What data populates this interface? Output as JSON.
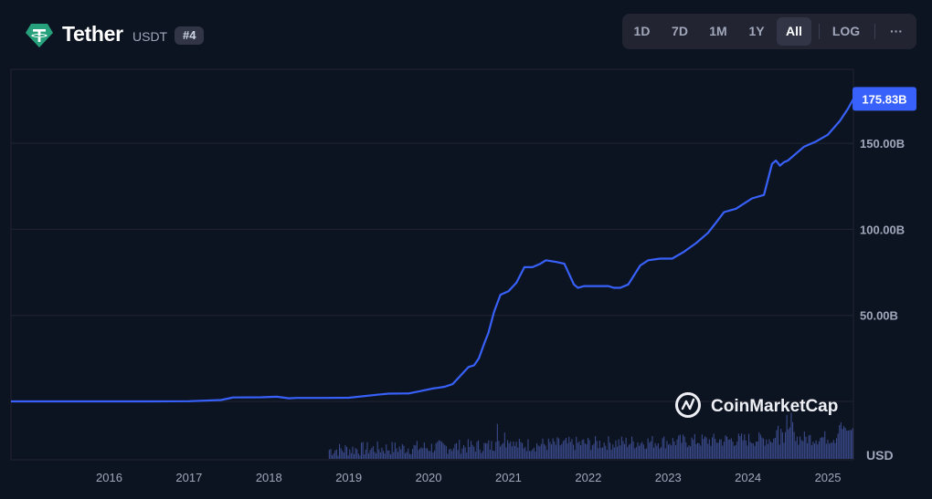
{
  "header": {
    "coin_name": "Tether",
    "coin_symbol": "USDT",
    "rank": "#4",
    "logo_icon": "tether-logo-icon",
    "logo_color": "#26a17b"
  },
  "range_selector": {
    "options": [
      "1D",
      "7D",
      "1M",
      "1Y",
      "All"
    ],
    "selected": "All",
    "log_label": "LOG",
    "more_label": "···"
  },
  "watermark": {
    "text": "CoinMarketCap",
    "icon": "coinmarketcap-logo-icon"
  },
  "volume_label": "USD",
  "colors": {
    "line": "#3861fb",
    "badge": "#3861fb",
    "volume": "#3a4a8a",
    "grid": "#222531",
    "background": "#0d1421"
  },
  "chart_data": {
    "type": "line",
    "title": "",
    "xlabel": "",
    "ylabel": "",
    "x_ticks": [
      "2016",
      "2017",
      "2018",
      "2019",
      "2020",
      "2021",
      "2022",
      "2023",
      "2024",
      "2025"
    ],
    "y_ticks": [
      "50.00B",
      "100.00B",
      "150.00B"
    ],
    "y_tick_values": [
      50,
      100,
      150
    ],
    "ylim": [
      0,
      193
    ],
    "xlim": [
      2015.27,
      2025.82
    ],
    "current_value_label": "175.83B",
    "grid": true,
    "series": [
      {
        "values_unit": "USD billions",
        "x": [
          2015.27,
          2016.0,
          2017.0,
          2017.5,
          2017.9,
          2018.05,
          2018.4,
          2018.6,
          2018.75,
          2018.85,
          2019.2,
          2019.5,
          2019.9,
          2020.0,
          2020.2,
          2020.25,
          2020.4,
          2020.55,
          2020.6,
          2020.7,
          2020.8,
          2020.9,
          2021.0,
          2021.07,
          2021.13,
          2021.2,
          2021.25,
          2021.32,
          2021.4,
          2021.5,
          2021.6,
          2021.7,
          2021.8,
          2021.9,
          2021.97,
          2022.1,
          2022.2,
          2022.32,
          2022.37,
          2022.45,
          2022.55,
          2022.75,
          2022.82,
          2022.9,
          2023.0,
          2023.15,
          2023.25,
          2023.4,
          2023.55,
          2023.7,
          2023.85,
          2023.95,
          2024.0,
          2024.1,
          2024.2,
          2024.35,
          2024.55,
          2024.7,
          2024.8,
          2024.85,
          2024.9,
          2024.95,
          2025.0,
          2025.1,
          2025.2,
          2025.35,
          2025.5,
          2025.65,
          2025.75,
          2025.82
        ],
        "y": [
          0.0,
          0.0,
          0.0,
          0.1,
          0.8,
          2.3,
          2.4,
          2.7,
          1.8,
          2.0,
          2.0,
          2.1,
          4.1,
          4.5,
          4.6,
          4.6,
          6.0,
          7.5,
          7.8,
          8.5,
          10.0,
          15.0,
          20.0,
          21.0,
          25.0,
          34.0,
          40.0,
          52.0,
          62.0,
          64.0,
          69.0,
          78.0,
          78.0,
          80.0,
          82.0,
          81.0,
          80.0,
          68.0,
          66.0,
          67.0,
          67.0,
          67.0,
          66.0,
          66.0,
          68.0,
          79.0,
          82.0,
          83.0,
          83.0,
          87.0,
          92.0,
          96.0,
          98.0,
          104.0,
          110.0,
          112.0,
          118.0,
          120.0,
          138.0,
          140.0,
          137.0,
          139.0,
          140.0,
          144.0,
          148.0,
          151.0,
          155.0,
          163.0,
          170.0,
          175.83
        ]
      }
    ]
  }
}
